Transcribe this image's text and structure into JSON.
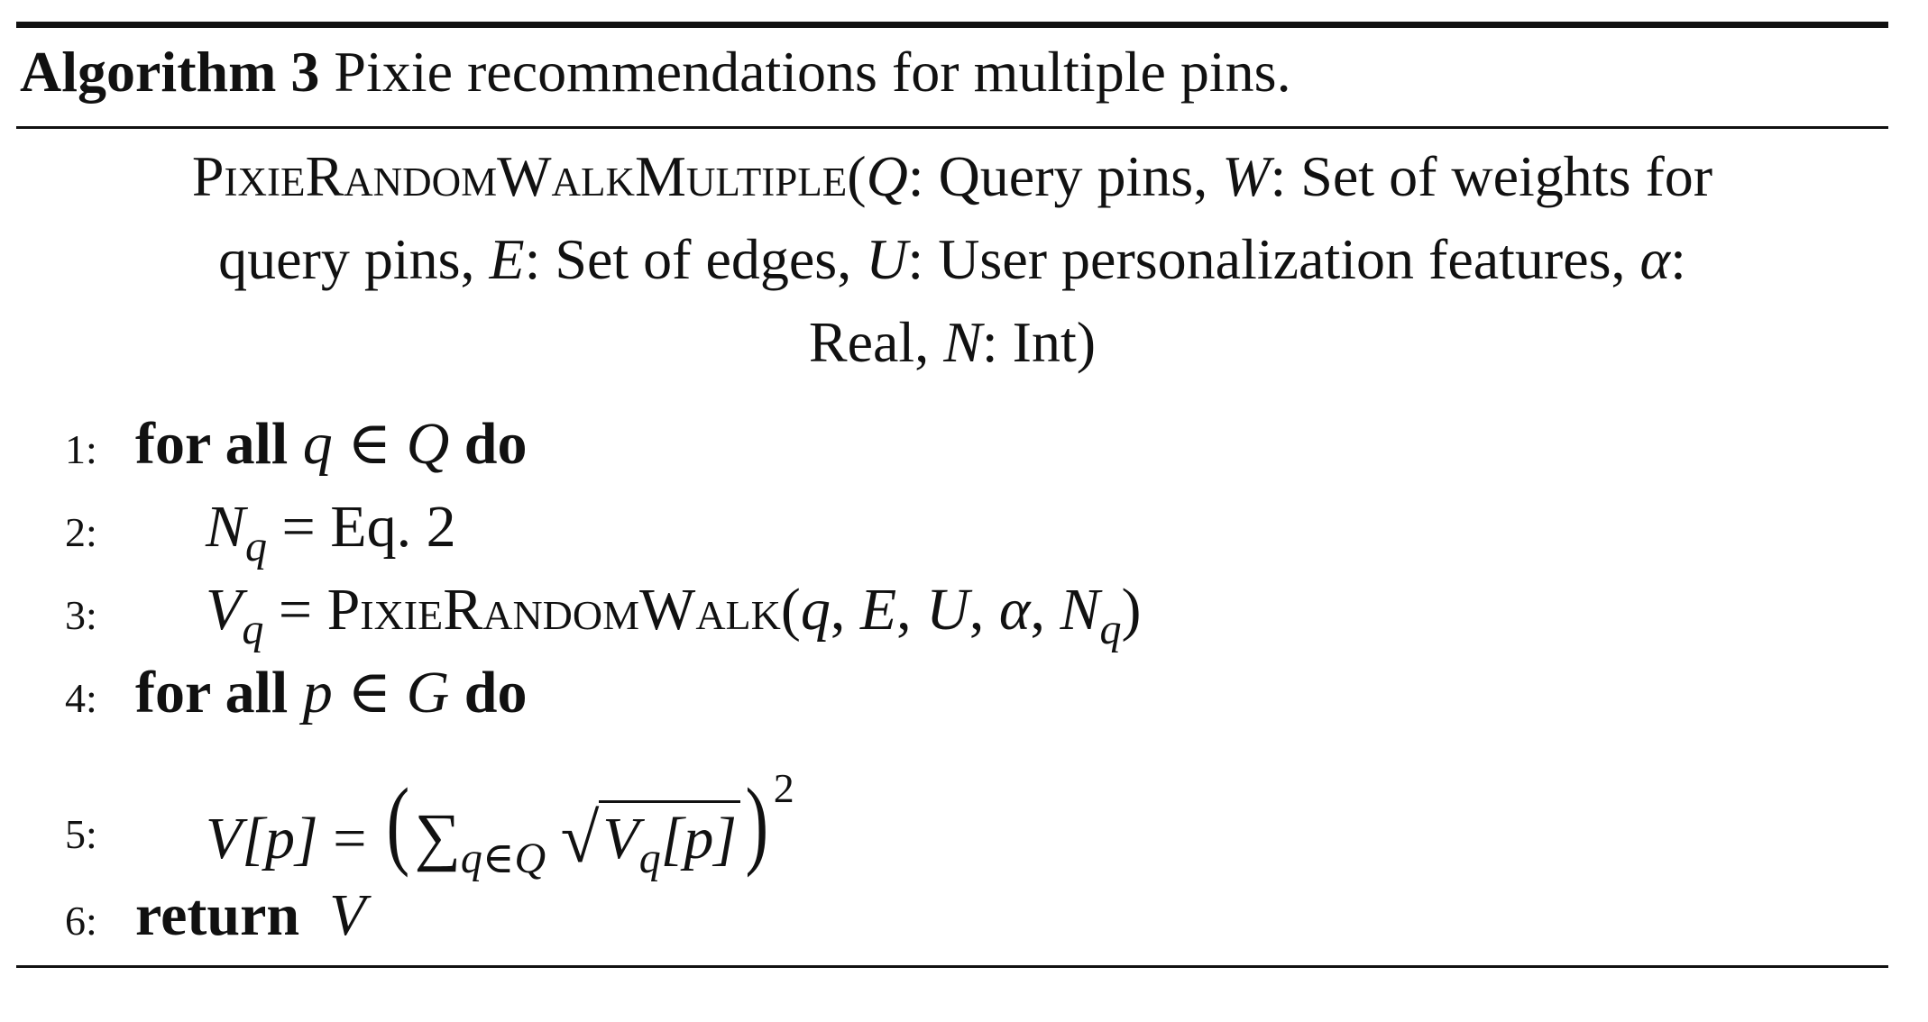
{
  "caption": {
    "label": "Algorithm 3",
    "text": "Pixie recommendations for multiple pins."
  },
  "signature": {
    "name": "PixieRandomWalkMultiple",
    "params": {
      "Q_sym": "Q",
      "Q_desc": ": Query pins, ",
      "W_sym": "W",
      "W_desc_line1": ": Set of weights for",
      "W_desc_line2": "query pins, ",
      "E_sym": "E",
      "E_desc": ": Set of edges, ",
      "U_sym": "U",
      "U_desc": ": User personalization features, ",
      "alpha_sym": "α",
      "alpha_desc_line2": ":",
      "alpha_desc_line3": "Real, ",
      "N_sym": "N",
      "N_desc": ": Int)"
    }
  },
  "lines": [
    {
      "no": "1:",
      "kw1": "for all",
      "var": "q",
      "rel": " ∈ ",
      "set": "Q",
      "kw2": "do"
    },
    {
      "no": "2:",
      "lhs": "N",
      "lhs_sub": "q",
      "rhs": " = Eq. 2"
    },
    {
      "no": "3:",
      "lhs": "V",
      "lhs_sub": "q",
      "eq": " = ",
      "func": "PixieRandomWalk",
      "args_open": "(",
      "a1": "q",
      "a2": "E",
      "a3": "U",
      "a4": "α",
      "a5": "N",
      "a5_sub": "q",
      "args_close": ")"
    },
    {
      "no": "4:",
      "kw1": "for all",
      "var": "p",
      "rel": " ∈ ",
      "set": "G",
      "kw2": "do"
    },
    {
      "no": "5:",
      "lhs": "V",
      "lhs_idx": "[p]",
      "eq": " = ",
      "sum": "∑",
      "sum_sub": "q∈Q",
      "sqrt": "√",
      "inner": "V",
      "inner_sub": "q",
      "inner_idx": "[p]",
      "power": "2"
    },
    {
      "no": "6:",
      "kw": "return",
      "value": "V"
    }
  ]
}
